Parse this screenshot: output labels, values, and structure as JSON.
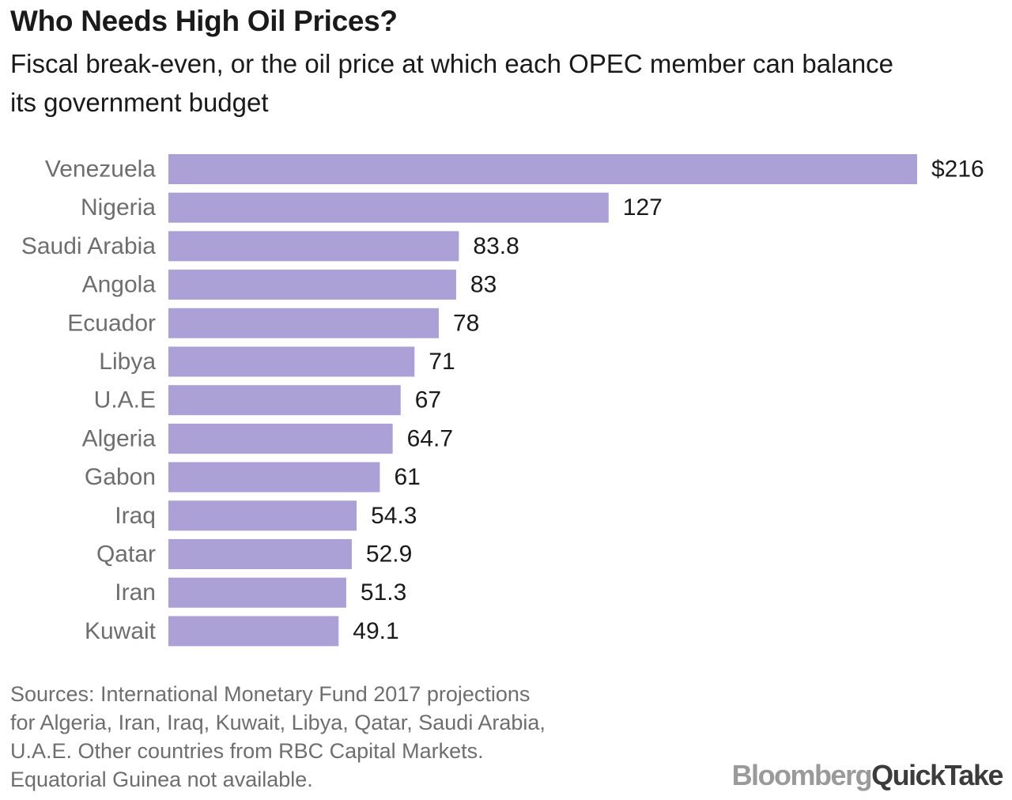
{
  "title": "Who Needs High Oil Prices?",
  "subtitle": "Fiscal break-even, or the oil price at which each OPEC member can balance its government budget",
  "chart_data": {
    "type": "bar",
    "orientation": "horizontal",
    "categories": [
      "Venezuela",
      "Nigeria",
      "Saudi Arabia",
      "Angola",
      "Ecuador",
      "Libya",
      "U.A.E",
      "Algeria",
      "Gabon",
      "Iraq",
      "Qatar",
      "Iran",
      "Kuwait"
    ],
    "values": [
      216,
      127,
      83.8,
      83,
      78,
      71,
      67,
      64.7,
      61,
      54.3,
      52.9,
      51.3,
      49.1
    ],
    "value_labels": [
      "$216",
      "127",
      "83.8",
      "83",
      "78",
      "71",
      "67",
      "64.7",
      "61",
      "54.3",
      "52.9",
      "51.3",
      "49.1"
    ],
    "xlim": [
      0,
      216
    ],
    "grid": false,
    "bar_color": "#aba1d6"
  },
  "source": {
    "lines": [
      "Sources: International Monetary Fund 2017 projections",
      "for Algeria, Iran, Iraq, Kuwait, Libya, Qatar, Saudi Arabia,",
      "U.A.E. Other countries from RBC Capital Markets.",
      "Equatorial Guinea not available."
    ]
  },
  "logo": {
    "part1": "Bloomberg",
    "part2": "QuickTake"
  }
}
